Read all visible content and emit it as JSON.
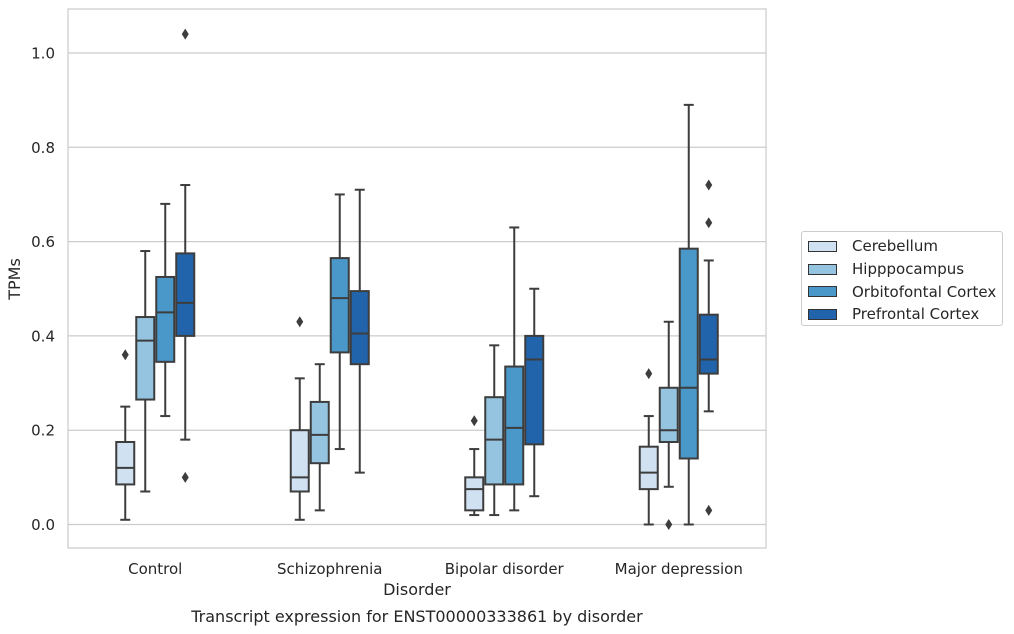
{
  "chart_data": {
    "type": "boxplot",
    "title": "Transcript expression for ENST00000333861 by disorder",
    "xlabel": "Disorder",
    "ylabel": "TPMs",
    "ylim": [
      -0.05,
      1.09
    ],
    "yticks": [
      "0.0",
      "0.2",
      "0.4",
      "0.6",
      "0.8",
      "1.0"
    ],
    "grid": true,
    "legend_position": "right",
    "categories": [
      "Control",
      "Schizophrenia",
      "Bipolar disorder",
      "Major depression"
    ],
    "series": [
      {
        "name": "Cerebellum",
        "color": "#d0e1f2",
        "boxes": [
          {
            "whislo": 0.01,
            "q1": 0.085,
            "med": 0.12,
            "q3": 0.175,
            "whishi": 0.25,
            "fliers": [
              0.36
            ]
          },
          {
            "whislo": 0.01,
            "q1": 0.07,
            "med": 0.1,
            "q3": 0.2,
            "whishi": 0.31,
            "fliers": [
              0.43
            ]
          },
          {
            "whislo": 0.02,
            "q1": 0.03,
            "med": 0.075,
            "q3": 0.1,
            "whishi": 0.16,
            "fliers": [
              0.22
            ]
          },
          {
            "whislo": 0.0,
            "q1": 0.075,
            "med": 0.11,
            "q3": 0.165,
            "whishi": 0.23,
            "fliers": [
              0.32
            ]
          }
        ]
      },
      {
        "name": "Hipppocampus",
        "color": "#94c4df",
        "boxes": [
          {
            "whislo": 0.07,
            "q1": 0.265,
            "med": 0.39,
            "q3": 0.44,
            "whishi": 0.58,
            "fliers": []
          },
          {
            "whislo": 0.03,
            "q1": 0.13,
            "med": 0.19,
            "q3": 0.26,
            "whishi": 0.34,
            "fliers": []
          },
          {
            "whislo": 0.02,
            "q1": 0.085,
            "med": 0.18,
            "q3": 0.27,
            "whishi": 0.38,
            "fliers": []
          },
          {
            "whislo": 0.08,
            "q1": 0.175,
            "med": 0.2,
            "q3": 0.29,
            "whishi": 0.43,
            "fliers": [
              0.0
            ]
          }
        ]
      },
      {
        "name": "Orbitofontal Cortex",
        "color": "#4a98c9",
        "boxes": [
          {
            "whislo": 0.23,
            "q1": 0.345,
            "med": 0.45,
            "q3": 0.525,
            "whishi": 0.68,
            "fliers": []
          },
          {
            "whislo": 0.16,
            "q1": 0.365,
            "med": 0.48,
            "q3": 0.565,
            "whishi": 0.7,
            "fliers": []
          },
          {
            "whislo": 0.03,
            "q1": 0.085,
            "med": 0.205,
            "q3": 0.335,
            "whishi": 0.63,
            "fliers": []
          },
          {
            "whislo": 0.0,
            "q1": 0.14,
            "med": 0.29,
            "q3": 0.585,
            "whishi": 0.89,
            "fliers": []
          }
        ]
      },
      {
        "name": "Prefrontal Cortex",
        "color": "#2164ab",
        "boxes": [
          {
            "whislo": 0.18,
            "q1": 0.4,
            "med": 0.47,
            "q3": 0.575,
            "whishi": 0.72,
            "fliers": [
              1.04,
              0.1
            ]
          },
          {
            "whislo": 0.11,
            "q1": 0.34,
            "med": 0.405,
            "q3": 0.495,
            "whishi": 0.71,
            "fliers": []
          },
          {
            "whislo": 0.06,
            "q1": 0.17,
            "med": 0.35,
            "q3": 0.4,
            "whishi": 0.5,
            "fliers": []
          },
          {
            "whislo": 0.24,
            "q1": 0.32,
            "med": 0.35,
            "q3": 0.445,
            "whishi": 0.56,
            "fliers": [
              0.72,
              0.64,
              0.03
            ]
          }
        ]
      }
    ]
  }
}
